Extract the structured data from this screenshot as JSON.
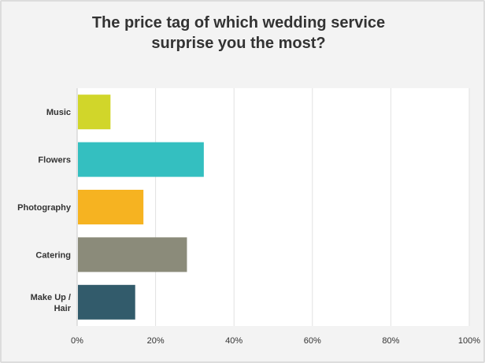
{
  "title_lines": [
    "The price tag of which wedding service",
    "surprise you the most?"
  ],
  "chart_data": {
    "type": "bar",
    "orientation": "horizontal",
    "title": "The price tag of which wedding service surprise you the most?",
    "categories": [
      [
        "Music"
      ],
      [
        "Flowers"
      ],
      [
        "Photography"
      ],
      [
        "Catering"
      ],
      [
        "Make Up /",
        "Hair"
      ]
    ],
    "values": [
      8.3,
      32.1,
      16.7,
      27.8,
      14.6
    ],
    "colors": [
      "#d1d62a",
      "#34bfc0",
      "#f6b321",
      "#8b8b7a",
      "#325b6b"
    ],
    "xlim": [
      0,
      100
    ],
    "x_ticks": [
      0,
      20,
      40,
      60,
      80,
      100
    ],
    "x_tick_labels": [
      "0%",
      "20%",
      "40%",
      "60%",
      "80%",
      "100%"
    ],
    "grid": true,
    "xlabel": "",
    "ylabel": ""
  }
}
